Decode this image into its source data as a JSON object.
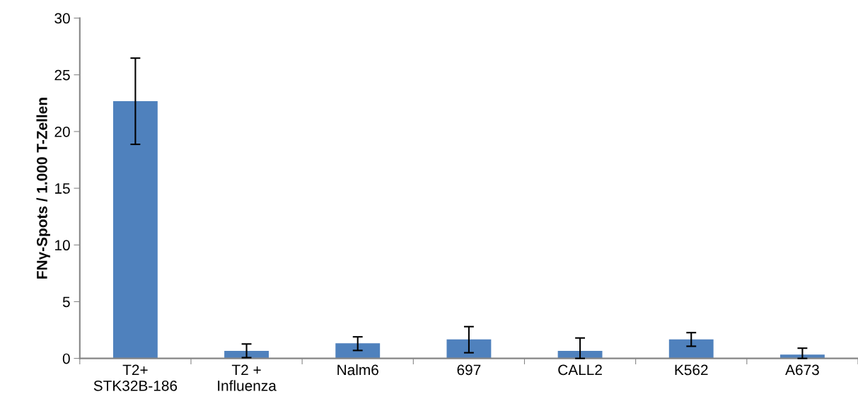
{
  "chart_data": {
    "type": "bar",
    "ylabel": "FNγ-Spots / 1.000 T-Zellen",
    "categories": [
      "T2+\nSTK32B-186",
      "T2 +\nInfluenza",
      "Nalm6",
      "697",
      "CALL2",
      "K562",
      "A673"
    ],
    "values": [
      22.67,
      0.67,
      1.33,
      1.67,
      0.67,
      1.67,
      0.33
    ],
    "errors": [
      [
        18.87,
        26.47
      ],
      [
        0.07,
        1.27
      ],
      [
        0.7,
        1.9
      ],
      [
        0.5,
        2.8
      ],
      [
        0,
        1.8
      ],
      [
        1.07,
        2.27
      ],
      [
        0,
        0.9
      ]
    ],
    "color": "#4f81bd",
    "ylim": [
      0,
      30
    ],
    "yticks": [
      0,
      5,
      10,
      15,
      20,
      25,
      30
    ],
    "grid": false
  }
}
